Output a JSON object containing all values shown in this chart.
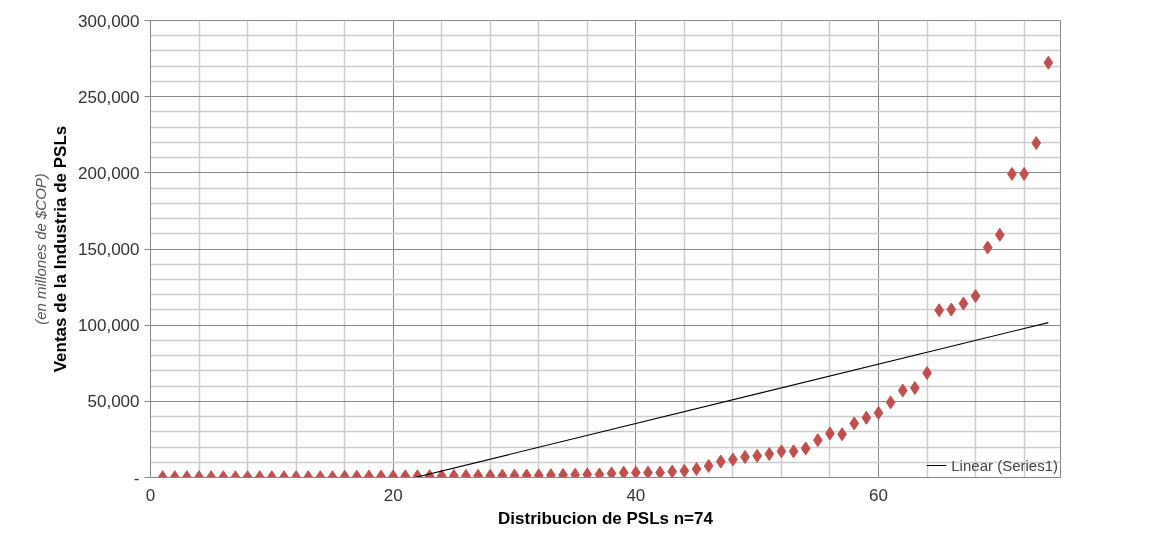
{
  "chart_data": {
    "type": "scatter",
    "xlabel": "Distribucion de PSLs n=74",
    "ylabel": "Ventas de la Industria de PSLs",
    "annotations": [
      "(en millones de $COP)"
    ],
    "xlim": [
      0,
      75
    ],
    "xticks": [
      0,
      20,
      40,
      60
    ],
    "ylim": [
      0,
      300000
    ],
    "yticks": [
      {
        "value": 0,
        "label": "-"
      },
      {
        "value": 50000,
        "label": "50,000"
      },
      {
        "value": 100000,
        "label": "100,000"
      },
      {
        "value": 150000,
        "label": "150,000"
      },
      {
        "value": 200000,
        "label": "200,000"
      },
      {
        "value": 250000,
        "label": "250,000"
      },
      {
        "value": 300000,
        "label": "300,000"
      }
    ],
    "grid": true,
    "legend": "bottom right",
    "marker": "diamond",
    "series": [
      {
        "type": "scatter",
        "color": "#c0504d",
        "x": [
          1,
          2,
          3,
          4,
          5,
          6,
          7,
          8,
          9,
          10,
          11,
          12,
          13,
          14,
          15,
          16,
          17,
          18,
          19,
          20,
          21,
          22,
          23,
          24,
          25,
          26,
          27,
          28,
          29,
          30,
          31,
          32,
          33,
          34,
          35,
          36,
          37,
          38,
          39,
          40,
          41,
          42,
          43,
          44,
          45,
          46,
          47,
          48,
          49,
          50,
          51,
          52,
          53,
          54,
          55,
          56,
          57,
          58,
          59,
          60,
          61,
          62,
          63,
          64,
          65,
          66,
          67,
          68,
          69,
          70,
          71,
          72,
          73,
          74
        ],
        "values": [
          200,
          200,
          200,
          200,
          200,
          200,
          200,
          200,
          200,
          200,
          200,
          200,
          200,
          200,
          200,
          500,
          500,
          600,
          600,
          700,
          800,
          800,
          900,
          900,
          1000,
          1000,
          1100,
          1100,
          1200,
          1200,
          1300,
          1400,
          1500,
          1600,
          1800,
          2000,
          2000,
          2700,
          3200,
          3200,
          3200,
          3200,
          3900,
          4400,
          5600,
          7600,
          10500,
          11800,
          13500,
          14200,
          15400,
          17200,
          17200,
          19100,
          24500,
          28900,
          28400,
          35500,
          39200,
          42400,
          49300,
          57100,
          58800,
          68600,
          109800,
          110300,
          114200,
          119100,
          151000,
          159300,
          199300,
          199300,
          219600,
          272300
        ]
      },
      {
        "type": "line",
        "name": "Linear (Series1)",
        "color": "#000000",
        "marker": "none",
        "x": [
          21.8,
          74
        ],
        "values": [
          0,
          101700
        ]
      }
    ]
  }
}
